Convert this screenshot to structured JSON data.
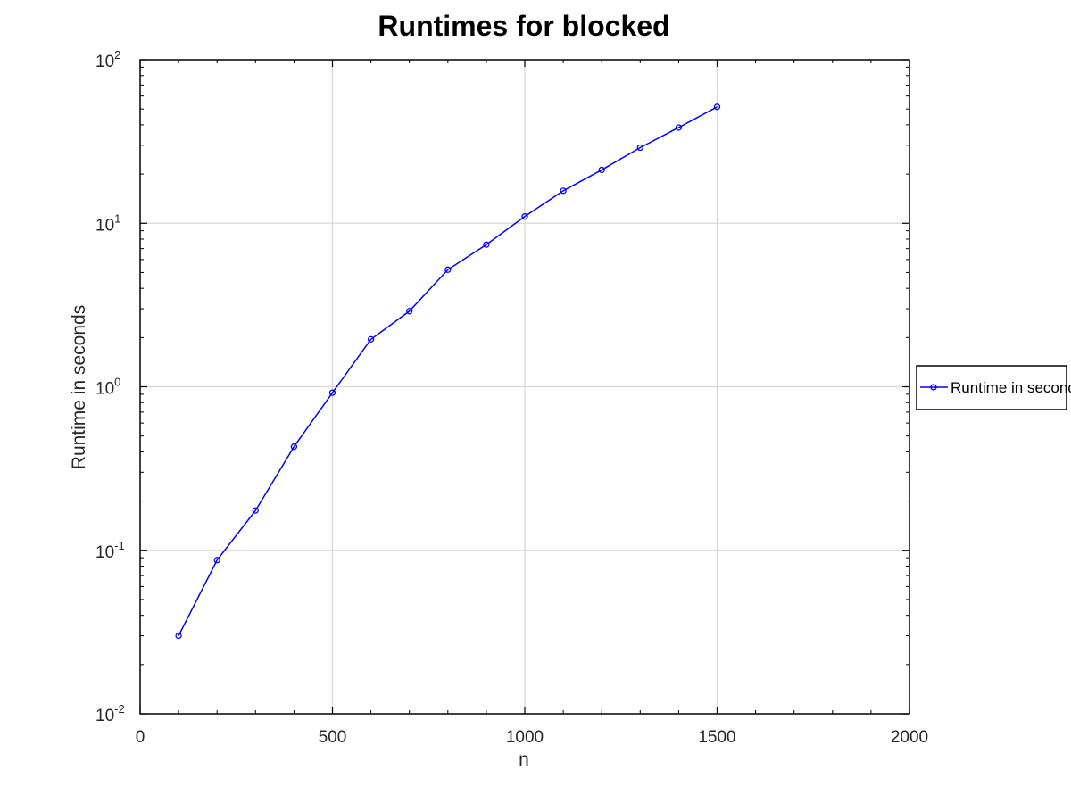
{
  "chart_data": {
    "type": "line",
    "title": "Runtimes for blocked",
    "xlabel": "n",
    "ylabel": "Runtime in seconds",
    "xlim": [
      0,
      2000
    ],
    "ylim": [
      0.01,
      100
    ],
    "yscale": "log",
    "x_ticks": [
      0,
      500,
      1000,
      1500,
      2000
    ],
    "y_ticks": [
      {
        "base": "10",
        "exp": "-2",
        "value": 0.01
      },
      {
        "base": "10",
        "exp": "-1",
        "value": 0.1
      },
      {
        "base": "10",
        "exp": "0",
        "value": 1
      },
      {
        "base": "10",
        "exp": "1",
        "value": 10
      },
      {
        "base": "10",
        "exp": "2",
        "value": 100
      }
    ],
    "grid": true,
    "legend_position": "outside-right",
    "series": [
      {
        "name": "Runtime in seconds",
        "color": "#0000ff",
        "marker": "circle",
        "x": [
          100,
          200,
          300,
          400,
          500,
          600,
          700,
          800,
          900,
          1000,
          1100,
          1200,
          1300,
          1400,
          1500
        ],
        "y": [
          0.03,
          0.087,
          0.175,
          0.43,
          0.92,
          1.95,
          2.9,
          5.2,
          7.4,
          11.0,
          15.8,
          21.2,
          29.0,
          38.5,
          51.5
        ]
      }
    ]
  }
}
